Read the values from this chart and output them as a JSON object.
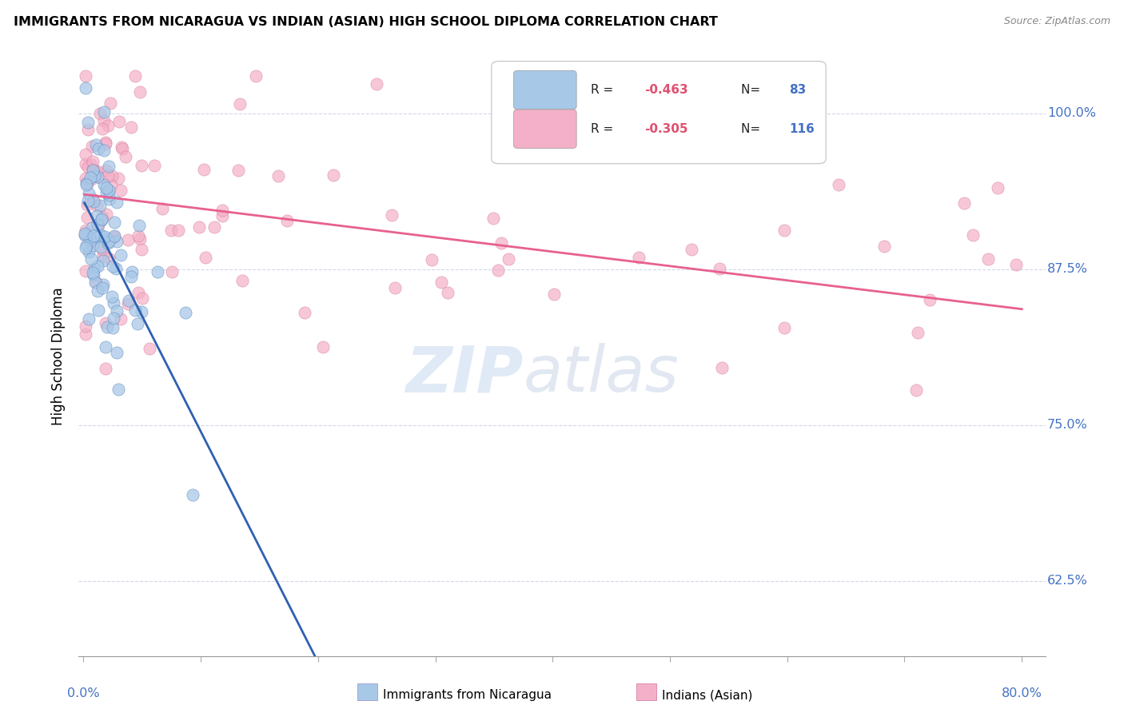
{
  "title": "IMMIGRANTS FROM NICARAGUA VS INDIAN (ASIAN) HIGH SCHOOL DIPLOMA CORRELATION CHART",
  "source": "Source: ZipAtlas.com",
  "ylabel": "High School Diploma",
  "ytick_labels": [
    "62.5%",
    "75.0%",
    "87.5%",
    "100.0%"
  ],
  "ytick_values": [
    0.625,
    0.75,
    0.875,
    1.0
  ],
  "color_nicaragua": "#a8c8e8",
  "color_india": "#f4b0c8",
  "color_nicaragua_line": "#3060b0",
  "color_india_line": "#e86090",
  "color_dashed": "#b8c8e0",
  "watermark_zip": "ZIP",
  "watermark_atlas": "atlas",
  "legend_items": [
    {
      "color": "#a8c8e8",
      "r": "-0.463",
      "n": "83"
    },
    {
      "color": "#f4b0c8",
      "r": "-0.305",
      "n": "116"
    }
  ],
  "xaxis_left": "0.0%",
  "xaxis_right": "80.0%",
  "bottom_legend": [
    {
      "color": "#a8c8e8",
      "label": "Immigrants from Nicaragua"
    },
    {
      "color": "#f4b0c8",
      "label": "Indians (Asian)"
    }
  ],
  "nic_slope": -1.85,
  "nic_intercept": 0.93,
  "nic_line_xstart": 0.001,
  "nic_line_xend": 0.32,
  "ind_slope": -0.115,
  "ind_intercept": 0.935,
  "ind_line_xstart": 0.001,
  "ind_line_xend": 0.8,
  "dash_xstart": 0.3,
  "dash_xend": 0.5,
  "xlim_min": -0.004,
  "xlim_max": 0.82,
  "ylim_min": 0.565,
  "ylim_max": 1.045
}
